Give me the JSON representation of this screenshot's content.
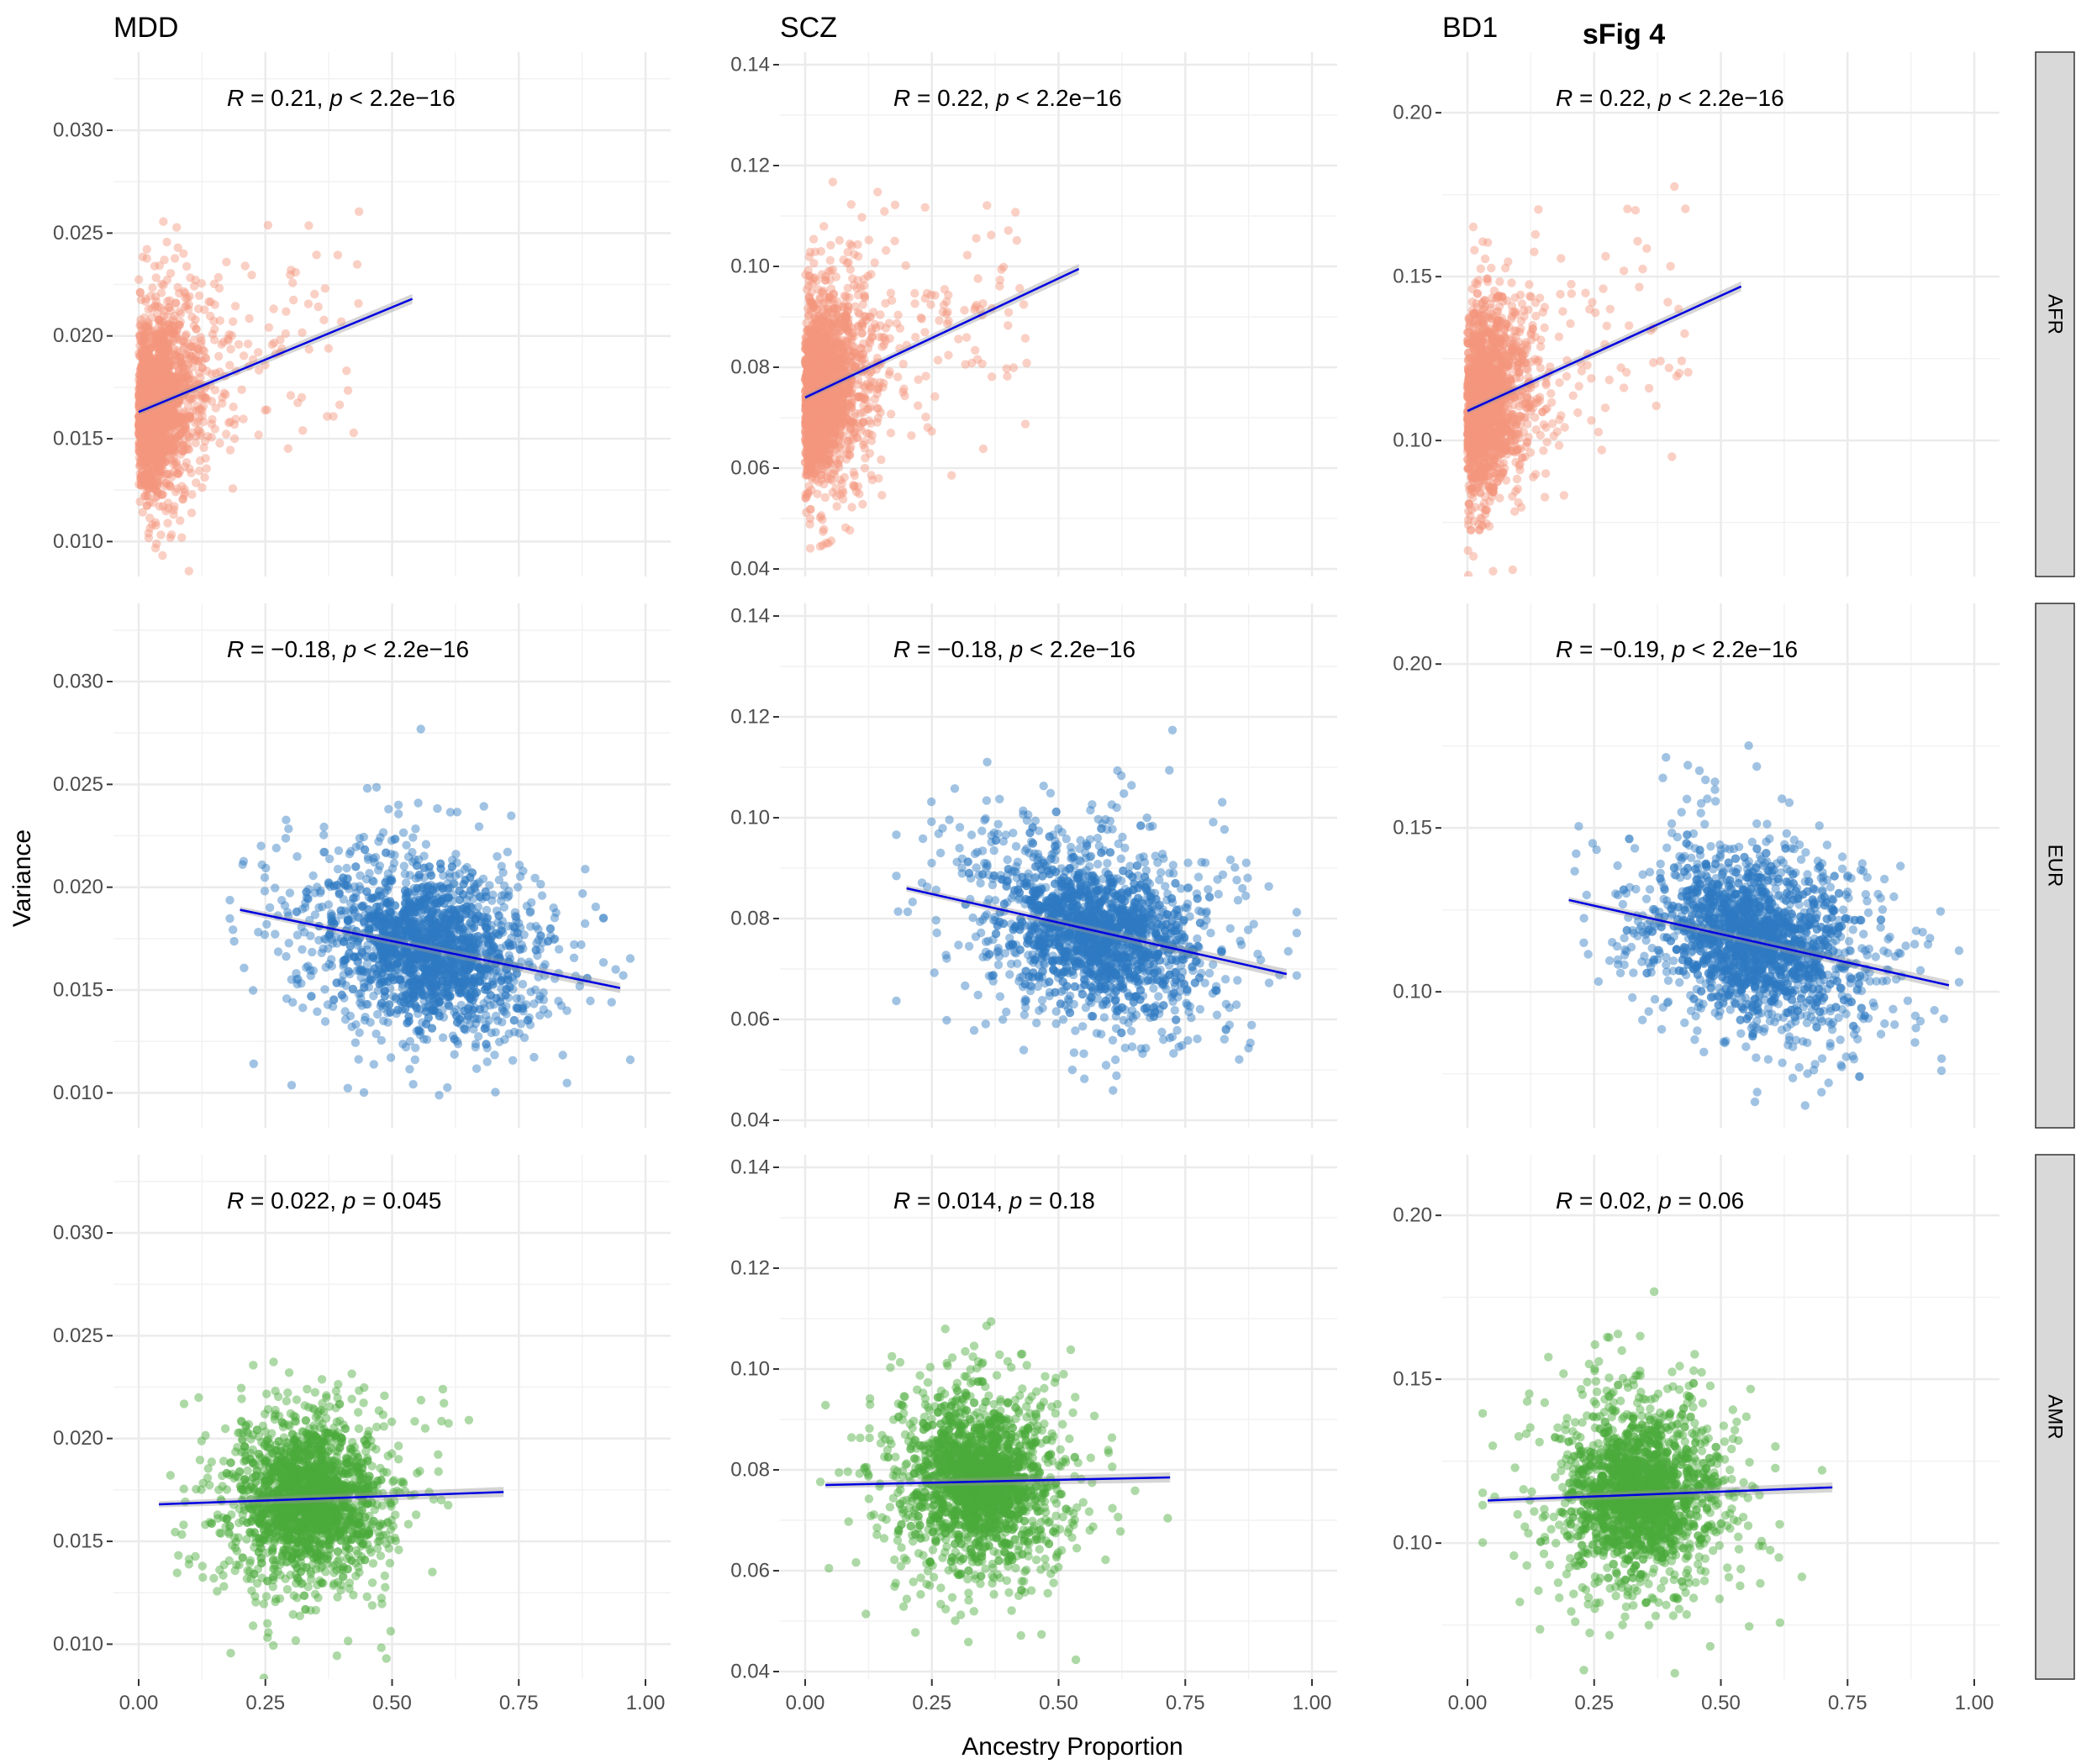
{
  "figure": {
    "title": "sFig 4",
    "xlabel": "Ancestry Proportion",
    "ylabel": "Variance"
  },
  "chart_data": {
    "type": "scatter",
    "columns": [
      "MDD",
      "SCZ",
      "BD1"
    ],
    "rows": [
      "AFR",
      "EUR",
      "AMR"
    ],
    "x_ticks": [
      "0.00",
      "0.25",
      "0.50",
      "0.75",
      "1.00"
    ],
    "xlim": [
      0,
      1
    ],
    "colors": {
      "AFR": "#F4967E",
      "EUR": "#2E79C2",
      "AMR": "#4AAA3A",
      "fit_line": "#0000E0"
    },
    "panels": [
      {
        "col": "MDD",
        "row": "AFR",
        "ylim": [
          0.0083,
          0.0338
        ],
        "y_ticks": [
          "0.010",
          "0.015",
          "0.020",
          "0.025",
          "0.030"
        ],
        "cloud": {
          "x_center": 0.07,
          "x_spread": 0.07,
          "y_center": 0.0168,
          "y_spread": 0.0028,
          "x_min": 0.0,
          "x_max": 0.55,
          "n": 900,
          "x_mode": "decay"
        },
        "fit": {
          "x": [
            0.0,
            0.54
          ],
          "y": [
            0.0163,
            0.0218
          ]
        },
        "annotation": {
          "R": "0.21",
          "p": "< 2.2e−16"
        }
      },
      {
        "col": "SCZ",
        "row": "AFR",
        "ylim": [
          0.0385,
          0.1425
        ],
        "y_ticks": [
          "0.04",
          "0.06",
          "0.08",
          "0.10",
          "0.12",
          "0.14"
        ],
        "cloud": {
          "x_center": 0.07,
          "x_spread": 0.07,
          "y_center": 0.077,
          "y_spread": 0.012,
          "x_min": 0.0,
          "x_max": 0.55,
          "n": 900,
          "x_mode": "decay"
        },
        "fit": {
          "x": [
            0.0,
            0.54
          ],
          "y": [
            0.074,
            0.0995
          ]
        },
        "annotation": {
          "R": "0.22",
          "p": "< 2.2e−16"
        }
      },
      {
        "col": "BD1",
        "row": "AFR",
        "ylim": [
          0.0585,
          0.2185
        ],
        "y_ticks": [
          "0.10",
          "0.15",
          "0.20"
        ],
        "cloud": {
          "x_center": 0.07,
          "x_spread": 0.07,
          "y_center": 0.114,
          "y_spread": 0.018,
          "x_min": 0.0,
          "x_max": 0.55,
          "n": 900,
          "x_mode": "decay"
        },
        "fit": {
          "x": [
            0.0,
            0.54
          ],
          "y": [
            0.109,
            0.147
          ]
        },
        "annotation": {
          "R": "0.22",
          "p": "< 2.2e−16"
        }
      },
      {
        "col": "MDD",
        "row": "EUR",
        "ylim": [
          0.0083,
          0.0338
        ],
        "y_ticks": [
          "0.010",
          "0.015",
          "0.020",
          "0.025",
          "0.030"
        ],
        "cloud": {
          "x_center": 0.57,
          "x_spread": 0.14,
          "y_center": 0.0168,
          "y_spread": 0.0026,
          "x_min": 0.18,
          "x_max": 0.97,
          "n": 900,
          "x_mode": "normal"
        },
        "fit": {
          "x": [
            0.2,
            0.95
          ],
          "y": [
            0.0189,
            0.0151
          ]
        },
        "annotation": {
          "R": "−0.18",
          "p": "< 2.2e−16"
        }
      },
      {
        "col": "SCZ",
        "row": "EUR",
        "ylim": [
          0.0385,
          0.1425
        ],
        "y_ticks": [
          "0.04",
          "0.06",
          "0.08",
          "0.10",
          "0.12",
          "0.14"
        ],
        "cloud": {
          "x_center": 0.57,
          "x_spread": 0.14,
          "y_center": 0.077,
          "y_spread": 0.011,
          "x_min": 0.18,
          "x_max": 0.97,
          "n": 900,
          "x_mode": "normal"
        },
        "fit": {
          "x": [
            0.2,
            0.95
          ],
          "y": [
            0.086,
            0.069
          ]
        },
        "annotation": {
          "R": "−0.18",
          "p": "< 2.2e−16"
        }
      },
      {
        "col": "BD1",
        "row": "EUR",
        "ylim": [
          0.0585,
          0.2185
        ],
        "y_ticks": [
          "0.10",
          "0.15",
          "0.20"
        ],
        "cloud": {
          "x_center": 0.57,
          "x_spread": 0.14,
          "y_center": 0.114,
          "y_spread": 0.017,
          "x_min": 0.18,
          "x_max": 0.97,
          "n": 900,
          "x_mode": "normal"
        },
        "fit": {
          "x": [
            0.2,
            0.95
          ],
          "y": [
            0.128,
            0.102
          ]
        },
        "annotation": {
          "R": "−0.19",
          "p": "< 2.2e−16"
        }
      },
      {
        "col": "MDD",
        "row": "AMR",
        "ylim": [
          0.0083,
          0.0338
        ],
        "y_ticks": [
          "0.010",
          "0.015",
          "0.020",
          "0.025",
          "0.030"
        ],
        "cloud": {
          "x_center": 0.34,
          "x_spread": 0.1,
          "y_center": 0.0172,
          "y_spread": 0.0025,
          "x_min": 0.03,
          "x_max": 0.75,
          "n": 900,
          "x_mode": "normal"
        },
        "fit": {
          "x": [
            0.04,
            0.72
          ],
          "y": [
            0.0168,
            0.0174
          ]
        },
        "annotation": {
          "R": "0.022",
          "p": "= 0.045"
        }
      },
      {
        "col": "SCZ",
        "row": "AMR",
        "ylim": [
          0.0385,
          0.1425
        ],
        "y_ticks": [
          "0.04",
          "0.06",
          "0.08",
          "0.10",
          "0.12",
          "0.14"
        ],
        "cloud": {
          "x_center": 0.34,
          "x_spread": 0.1,
          "y_center": 0.0775,
          "y_spread": 0.011,
          "x_min": 0.03,
          "x_max": 0.75,
          "n": 900,
          "x_mode": "normal"
        },
        "fit": {
          "x": [
            0.04,
            0.72
          ],
          "y": [
            0.077,
            0.0785
          ]
        },
        "annotation": {
          "R": "0.014",
          "p": "= 0.18"
        }
      },
      {
        "col": "BD1",
        "row": "AMR",
        "ylim": [
          0.0585,
          0.2185
        ],
        "y_ticks": [
          "0.10",
          "0.15",
          "0.20"
        ],
        "cloud": {
          "x_center": 0.34,
          "x_spread": 0.1,
          "y_center": 0.115,
          "y_spread": 0.017,
          "x_min": 0.03,
          "x_max": 0.75,
          "n": 900,
          "x_mode": "normal"
        },
        "fit": {
          "x": [
            0.04,
            0.72
          ],
          "y": [
            0.113,
            0.117
          ]
        },
        "annotation": {
          "R": "0.02",
          "p": "= 0.06"
        }
      }
    ]
  }
}
